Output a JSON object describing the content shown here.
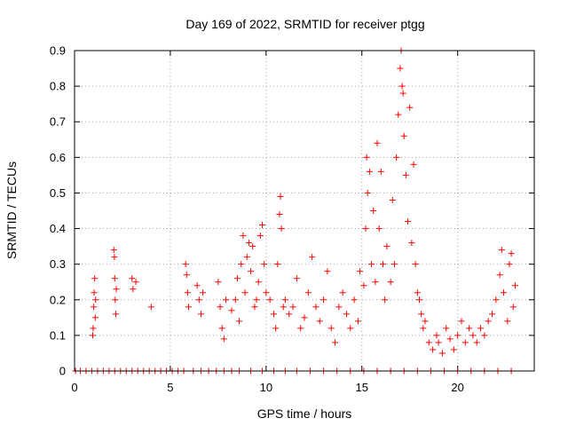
{
  "chart_data": {
    "type": "scatter",
    "title": "Day 169 of 2022, SRMTID for receiver ptgg",
    "xlabel": "GPS time / hours",
    "ylabel": "SRMTID / TECUs",
    "xlim": [
      0,
      24
    ],
    "ylim": [
      0,
      0.9
    ],
    "xticks": [
      0,
      5,
      10,
      15,
      20
    ],
    "xtick_labels": [
      "0",
      "5",
      "10",
      "15",
      "20"
    ],
    "yticks": [
      0,
      0.1,
      0.2,
      0.3,
      0.4,
      0.5,
      0.6,
      0.7,
      0.8,
      0.9
    ],
    "ytick_labels": [
      "0",
      "0.1",
      "0.2",
      "0.3",
      "0.4",
      "0.5",
      "0.6",
      "0.7",
      "0.8",
      "0.9"
    ],
    "grid": true,
    "marker": "+",
    "color": "#ff0000",
    "series": [
      {
        "name": "SRMTID",
        "points": [
          [
            0.05,
            0
          ],
          [
            0.3,
            0
          ],
          [
            0.6,
            0
          ],
          [
            0.9,
            0
          ],
          [
            1.2,
            0
          ],
          [
            1.5,
            0
          ],
          [
            1.8,
            0
          ],
          [
            2.1,
            0
          ],
          [
            2.4,
            0
          ],
          [
            2.7,
            0
          ],
          [
            3.0,
            0
          ],
          [
            3.3,
            0
          ],
          [
            3.6,
            0
          ],
          [
            3.9,
            0
          ],
          [
            4.2,
            0
          ],
          [
            4.5,
            0
          ],
          [
            4.8,
            0
          ],
          [
            5.1,
            0
          ],
          [
            5.4,
            0
          ],
          [
            5.7,
            0
          ],
          [
            6.2,
            0
          ],
          [
            6.6,
            0
          ],
          [
            7.0,
            0
          ],
          [
            7.4,
            0
          ],
          [
            7.8,
            0
          ],
          [
            8.2,
            0
          ],
          [
            8.6,
            0
          ],
          [
            9.2,
            0
          ],
          [
            9.8,
            0
          ],
          [
            10.4,
            0
          ],
          [
            11.0,
            0
          ],
          [
            11.6,
            0
          ],
          [
            12.3,
            0
          ],
          [
            13.0,
            0
          ],
          [
            13.7,
            0
          ],
          [
            14.4,
            0
          ],
          [
            15.1,
            0
          ],
          [
            15.8,
            0
          ],
          [
            16.5,
            0
          ],
          [
            17.2,
            0
          ],
          [
            17.9,
            0
          ],
          [
            18.6,
            0
          ],
          [
            19.3,
            0
          ],
          [
            20.0,
            0
          ],
          [
            20.7,
            0
          ],
          [
            21.4,
            0
          ],
          [
            22.1,
            0
          ],
          [
            22.8,
            0
          ],
          [
            0.95,
            0.1
          ],
          [
            0.97,
            0.12
          ],
          [
            1.0,
            0.18
          ],
          [
            1.02,
            0.22
          ],
          [
            1.05,
            0.26
          ],
          [
            1.08,
            0.15
          ],
          [
            1.1,
            0.2
          ],
          [
            2.05,
            0.34
          ],
          [
            2.08,
            0.32
          ],
          [
            2.1,
            0.26
          ],
          [
            2.12,
            0.2
          ],
          [
            2.15,
            0.16
          ],
          [
            2.18,
            0.23
          ],
          [
            3.0,
            0.26
          ],
          [
            3.05,
            0.23
          ],
          [
            3.2,
            0.25
          ],
          [
            4.0,
            0.18
          ],
          [
            5.8,
            0.3
          ],
          [
            5.85,
            0.27
          ],
          [
            5.9,
            0.22
          ],
          [
            5.95,
            0.18
          ],
          [
            6.4,
            0.24
          ],
          [
            6.5,
            0.2
          ],
          [
            6.6,
            0.16
          ],
          [
            6.7,
            0.22
          ],
          [
            7.5,
            0.25
          ],
          [
            7.6,
            0.18
          ],
          [
            7.7,
            0.12
          ],
          [
            7.8,
            0.09
          ],
          [
            7.9,
            0.2
          ],
          [
            8.2,
            0.17
          ],
          [
            8.4,
            0.2
          ],
          [
            8.5,
            0.26
          ],
          [
            8.6,
            0.14
          ],
          [
            8.7,
            0.3
          ],
          [
            8.8,
            0.38
          ],
          [
            8.9,
            0.22
          ],
          [
            9.0,
            0.32
          ],
          [
            9.1,
            0.36
          ],
          [
            9.2,
            0.28
          ],
          [
            9.3,
            0.35
          ],
          [
            9.4,
            0.18
          ],
          [
            9.5,
            0.2
          ],
          [
            9.6,
            0.25
          ],
          [
            9.7,
            0.38
          ],
          [
            9.8,
            0.41
          ],
          [
            9.9,
            0.3
          ],
          [
            10.0,
            0.22
          ],
          [
            10.2,
            0.2
          ],
          [
            10.4,
            0.16
          ],
          [
            10.5,
            0.12
          ],
          [
            10.6,
            0.3
          ],
          [
            10.7,
            0.44
          ],
          [
            10.75,
            0.49
          ],
          [
            10.8,
            0.4
          ],
          [
            10.9,
            0.18
          ],
          [
            11.0,
            0.2
          ],
          [
            11.2,
            0.16
          ],
          [
            11.4,
            0.18
          ],
          [
            11.6,
            0.26
          ],
          [
            11.8,
            0.12
          ],
          [
            12.0,
            0.15
          ],
          [
            12.2,
            0.22
          ],
          [
            12.4,
            0.32
          ],
          [
            12.6,
            0.18
          ],
          [
            12.8,
            0.14
          ],
          [
            13.0,
            0.2
          ],
          [
            13.2,
            0.28
          ],
          [
            13.4,
            0.12
          ],
          [
            13.6,
            0.08
          ],
          [
            13.8,
            0.18
          ],
          [
            14.0,
            0.22
          ],
          [
            14.2,
            0.16
          ],
          [
            14.4,
            0.12
          ],
          [
            14.6,
            0.2
          ],
          [
            14.8,
            0.14
          ],
          [
            14.9,
            0.28
          ],
          [
            15.1,
            0.24
          ],
          [
            15.2,
            0.4
          ],
          [
            15.25,
            0.6
          ],
          [
            15.3,
            0.5
          ],
          [
            15.4,
            0.56
          ],
          [
            15.5,
            0.3
          ],
          [
            15.6,
            0.45
          ],
          [
            15.7,
            0.25
          ],
          [
            15.8,
            0.64
          ],
          [
            15.9,
            0.4
          ],
          [
            16.0,
            0.56
          ],
          [
            16.1,
            0.3
          ],
          [
            16.2,
            0.2
          ],
          [
            16.3,
            0.35
          ],
          [
            16.5,
            0.25
          ],
          [
            16.6,
            0.48
          ],
          [
            16.7,
            0.3
          ],
          [
            16.8,
            0.6
          ],
          [
            16.9,
            0.72
          ],
          [
            17.0,
            0.85
          ],
          [
            17.05,
            0.9
          ],
          [
            17.1,
            0.8
          ],
          [
            17.15,
            0.78
          ],
          [
            17.2,
            0.66
          ],
          [
            17.3,
            0.55
          ],
          [
            17.4,
            0.42
          ],
          [
            17.5,
            0.74
          ],
          [
            17.6,
            0.36
          ],
          [
            17.7,
            0.58
          ],
          [
            17.8,
            0.3
          ],
          [
            17.9,
            0.22
          ],
          [
            18.0,
            0.2
          ],
          [
            18.1,
            0.16
          ],
          [
            18.2,
            0.12
          ],
          [
            18.3,
            0.14
          ],
          [
            18.5,
            0.08
          ],
          [
            18.7,
            0.06
          ],
          [
            18.9,
            0.1
          ],
          [
            19.0,
            0.08
          ],
          [
            19.2,
            0.05
          ],
          [
            19.4,
            0.12
          ],
          [
            19.6,
            0.09
          ],
          [
            19.8,
            0.06
          ],
          [
            20.0,
            0.1
          ],
          [
            20.2,
            0.14
          ],
          [
            20.4,
            0.08
          ],
          [
            20.6,
            0.12
          ],
          [
            20.8,
            0.1
          ],
          [
            21.0,
            0.08
          ],
          [
            21.2,
            0.12
          ],
          [
            21.4,
            0.1
          ],
          [
            21.6,
            0.14
          ],
          [
            21.8,
            0.16
          ],
          [
            22.0,
            0.2
          ],
          [
            22.2,
            0.27
          ],
          [
            22.3,
            0.34
          ],
          [
            22.4,
            0.22
          ],
          [
            22.6,
            0.14
          ],
          [
            22.7,
            0.3
          ],
          [
            22.8,
            0.33
          ],
          [
            22.9,
            0.18
          ],
          [
            23.0,
            0.24
          ]
        ]
      }
    ]
  }
}
